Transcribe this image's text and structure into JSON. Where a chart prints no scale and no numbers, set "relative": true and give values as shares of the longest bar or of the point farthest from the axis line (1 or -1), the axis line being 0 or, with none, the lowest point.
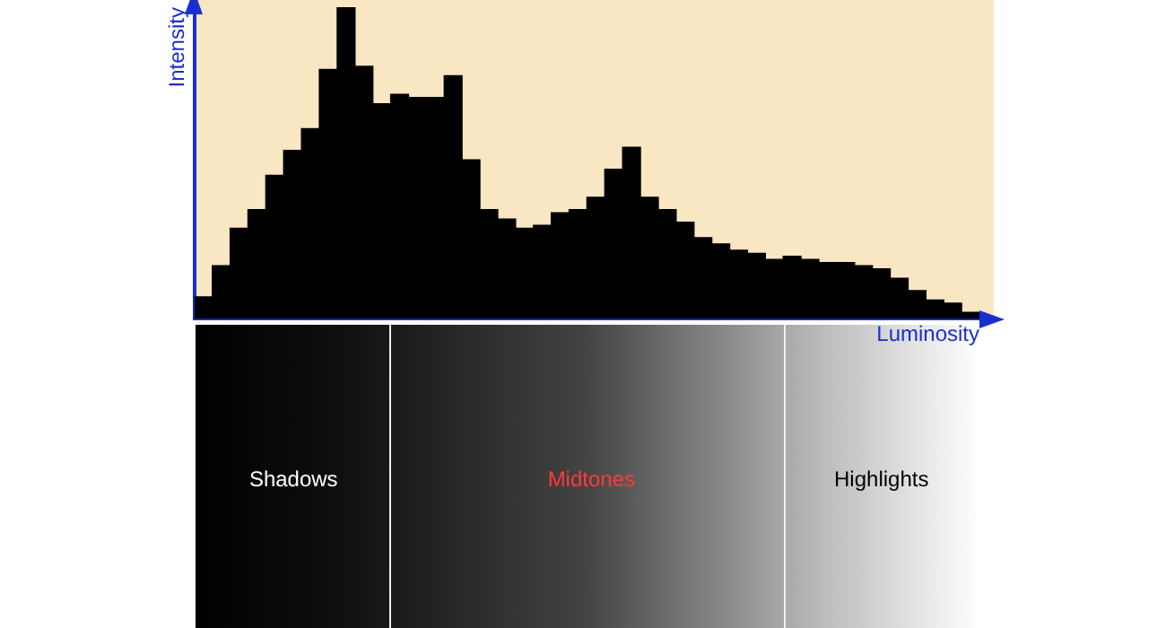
{
  "chart_data": {
    "type": "bar",
    "relative": true,
    "xlabel": "Luminosity",
    "ylabel": "Intensity",
    "grid": false,
    "legend": false,
    "tick_labels": false,
    "color": "#000000",
    "categories": [
      null,
      null,
      null,
      null,
      null,
      null,
      null,
      null,
      null,
      null,
      null,
      null,
      null,
      null,
      null,
      null,
      null,
      null,
      null,
      null,
      null,
      null,
      null,
      null,
      null,
      null,
      null,
      null,
      null,
      null,
      null,
      null,
      null,
      null,
      null,
      null,
      null,
      null,
      null,
      null,
      null,
      null,
      null,
      null
    ],
    "values": [
      0.07,
      0.17,
      0.29,
      0.35,
      0.46,
      0.54,
      0.61,
      0.8,
      1,
      0.81,
      0.69,
      0.72,
      0.71,
      0.71,
      0.78,
      0.51,
      0.35,
      0.32,
      0.29,
      0.3,
      0.34,
      0.35,
      0.39,
      0.48,
      0.55,
      0.39,
      0.35,
      0.31,
      0.26,
      0.24,
      0.22,
      0.21,
      0.19,
      0.2,
      0.19,
      0.18,
      0.18,
      0.17,
      0.16,
      0.13,
      0.09,
      0.06,
      0.05,
      0.02
    ],
    "annotations": [
      "Shadows",
      "Midtones",
      "Highlights"
    ]
  }
}
